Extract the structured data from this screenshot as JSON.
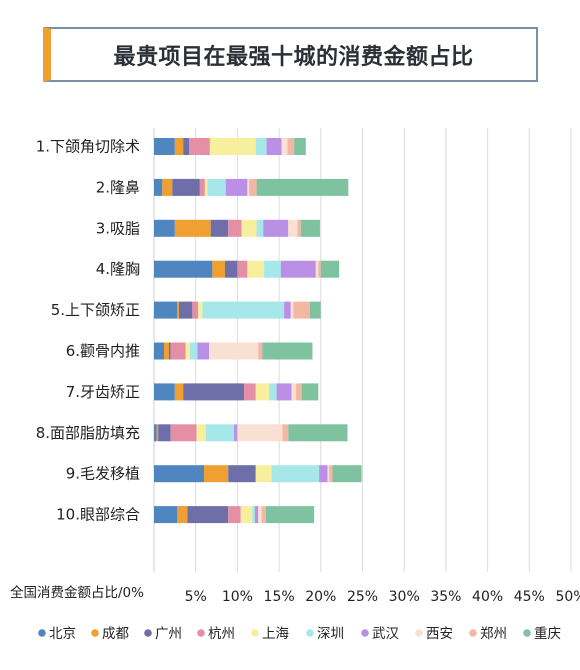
{
  "title": "最贵项目在最强十城的消费金额占比",
  "chart_data": {
    "type": "bar",
    "orientation": "horizontal",
    "stacked": true,
    "categories": [
      "1.下颌角切除术",
      "2.隆鼻",
      "3.吸脂",
      "4.隆胸",
      "5.上下颌矫正",
      "6.颧骨内推",
      "7.牙齿矫正",
      "8.面部脂肪填充",
      "9.毛发移植",
      "10.眼部综合"
    ],
    "series": [
      {
        "name": "北京",
        "color": "#4f86c0",
        "values": [
          2.5,
          1.0,
          2.5,
          7.0,
          2.8,
          1.2,
          2.5,
          0.3,
          6.0,
          2.8
        ]
      },
      {
        "name": "成都",
        "color": "#f0a030",
        "values": [
          1.0,
          1.2,
          4.3,
          1.5,
          0.2,
          0.6,
          1.0,
          0.2,
          2.9,
          1.2
        ]
      },
      {
        "name": "广州",
        "color": "#6e6ea8",
        "values": [
          0.7,
          3.3,
          2.1,
          1.5,
          1.6,
          0.2,
          7.3,
          1.5,
          3.3,
          4.9
        ]
      },
      {
        "name": "杭州",
        "color": "#e58fa6",
        "values": [
          2.5,
          0.6,
          1.6,
          1.2,
          0.7,
          1.8,
          1.4,
          3.1,
          0.0,
          1.5
        ]
      },
      {
        "name": "上海",
        "color": "#f7ee9e",
        "values": [
          5.5,
          0.3,
          1.8,
          2.0,
          0.5,
          0.5,
          1.6,
          1.1,
          1.9,
          1.4
        ]
      },
      {
        "name": "深圳",
        "color": "#a6e8ea",
        "values": [
          1.3,
          2.2,
          0.8,
          2.0,
          9.8,
          0.9,
          0.9,
          3.4,
          5.7,
          0.3
        ]
      },
      {
        "name": "武汉",
        "color": "#bb8fe6",
        "values": [
          1.8,
          2.6,
          3.0,
          4.2,
          0.8,
          1.4,
          1.8,
          0.4,
          1.0,
          0.4
        ]
      },
      {
        "name": "西安",
        "color": "#f8e0d2",
        "values": [
          0.7,
          0.2,
          1.1,
          0.3,
          0.3,
          5.9,
          0.5,
          5.4,
          0.2,
          0.4
        ]
      },
      {
        "name": "郑州",
        "color": "#f3b8a4",
        "values": [
          0.8,
          0.9,
          0.4,
          0.3,
          2.0,
          0.5,
          0.7,
          0.7,
          0.4,
          0.5
        ]
      },
      {
        "name": "重庆",
        "color": "#7fc2a0",
        "values": [
          1.4,
          11.0,
          2.3,
          2.2,
          1.3,
          6.0,
          2.0,
          7.1,
          3.5,
          5.8
        ]
      }
    ],
    "xaxis_label": "全国消费金额占比/0%",
    "xticks": [
      "5%",
      "10%",
      "15%",
      "20%",
      "25%",
      "30%",
      "35%",
      "40%",
      "45%",
      "50%"
    ],
    "xlim": [
      0,
      50
    ],
    "grid": true,
    "legend_position": "bottom"
  }
}
